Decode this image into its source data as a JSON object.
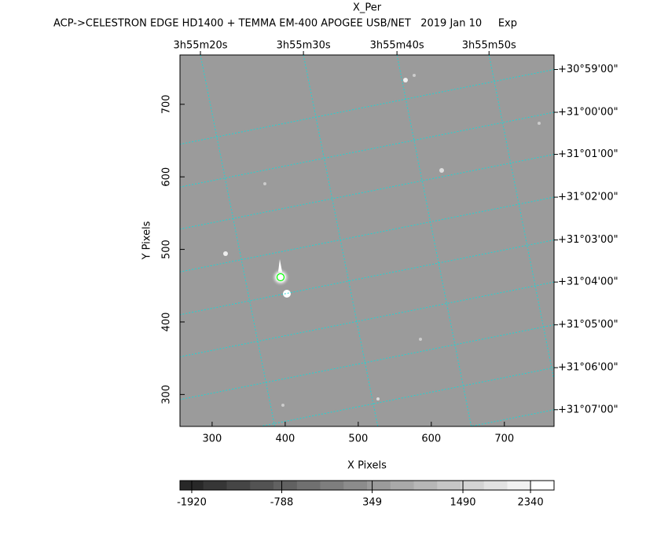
{
  "chart_data": {
    "type": "image",
    "title": "X_Per",
    "subtitle": "ACP->CELESTRON EDGE HD1400 + TEMMA EM-400 APOGEE USB/NET   2019 Jan 10     Exp",
    "x_label": "X Pixels",
    "y_label": "Y Pixels",
    "xlim": [
      256,
      768
    ],
    "ylim": [
      256,
      768
    ],
    "xticks": [
      300,
      400,
      500,
      600,
      700
    ],
    "yticks": [
      300,
      400,
      500,
      600,
      700
    ],
    "ra_ticks": [
      {
        "value": 284,
        "label": "3h55m20s"
      },
      {
        "value": 425,
        "label": "3h55m30s"
      },
      {
        "value": 553,
        "label": "3h55m40s"
      },
      {
        "value": 679,
        "label": "3h55m50s"
      }
    ],
    "dec_ticks": [
      {
        "value": 748,
        "label": "+30°59'00\""
      },
      {
        "value": 689,
        "label": "+31°00'00\""
      },
      {
        "value": 631,
        "label": "+31°01'00\""
      },
      {
        "value": 572,
        "label": "+31°02'00\""
      },
      {
        "value": 513,
        "label": "+31°03'00\""
      },
      {
        "value": 455,
        "label": "+31°04'00\""
      },
      {
        "value": 396,
        "label": "+31°05'00\""
      },
      {
        "value": 337,
        "label": "+31°06'00\""
      },
      {
        "value": 279,
        "label": "+31°07'00\""
      }
    ],
    "grid_color": "#22d3d3",
    "colorbar_lim": [
      -2068,
      2636
    ],
    "colorbar_ticks": [
      -1920,
      -788,
      349,
      1490,
      2340
    ]
  }
}
